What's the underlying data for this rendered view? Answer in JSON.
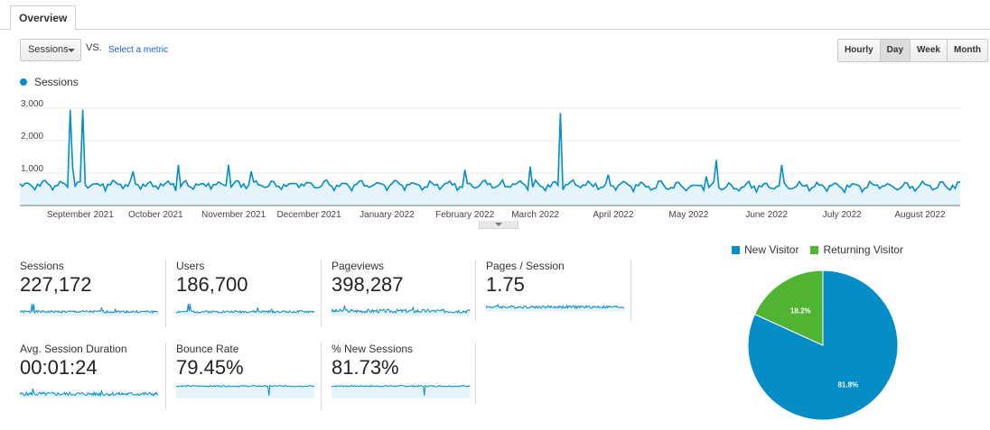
{
  "tabs": [
    {
      "label": "Overview",
      "active": true
    }
  ],
  "controls": {
    "metric_select": "Sessions",
    "vs_label": "VS.",
    "select_metric_link": "Select a metric",
    "granularity": [
      {
        "label": "Hourly",
        "active": false
      },
      {
        "label": "Day",
        "active": true
      },
      {
        "label": "Week",
        "active": false
      },
      {
        "label": "Month",
        "active": false
      }
    ]
  },
  "colors": {
    "primary": "#058dc7",
    "area_fill": "#e5f3fa",
    "new_visitor": "#058dc7",
    "returning_visitor": "#50b432",
    "gridline": "#e8e8e8"
  },
  "chart_data": [
    {
      "type": "area",
      "series": [
        {
          "name": "Sessions"
        }
      ],
      "yticks": [
        "3,000",
        "2,000",
        "1,000"
      ],
      "ytick_values": [
        3000,
        2000,
        1000
      ],
      "ylim": [
        0,
        3250
      ],
      "x_start": "2021-08-08",
      "x_end": "2022-08-17",
      "month_labels": [
        {
          "label": "September 2021",
          "date": "2021-09-01"
        },
        {
          "label": "October 2021",
          "date": "2021-10-01"
        },
        {
          "label": "November 2021",
          "date": "2021-11-01"
        },
        {
          "label": "December 2021",
          "date": "2021-12-01"
        },
        {
          "label": "January 2022",
          "date": "2022-01-01"
        },
        {
          "label": "February 2022",
          "date": "2022-02-01"
        },
        {
          "label": "March 2022",
          "date": "2022-03-01"
        },
        {
          "label": "April 2022",
          "date": "2022-04-01"
        },
        {
          "label": "May 2022",
          "date": "2022-05-01"
        },
        {
          "label": "June 2022",
          "date": "2022-06-01"
        },
        {
          "label": "July 2022",
          "date": "2022-07-01"
        },
        {
          "label": "August 2022",
          "date": "2022-08-01"
        }
      ],
      "baseline": 620,
      "spikes": [
        {
          "date": "2021-08-28",
          "value": 2950
        },
        {
          "date": "2021-09-02",
          "value": 2950
        },
        {
          "date": "2021-08-29",
          "value": 1150
        },
        {
          "date": "2021-09-22",
          "value": 1050
        },
        {
          "date": "2021-10-10",
          "value": 1250
        },
        {
          "date": "2021-10-30",
          "value": 1250
        },
        {
          "date": "2021-11-08",
          "value": 1050
        },
        {
          "date": "2022-02-01",
          "value": 1100
        },
        {
          "date": "2022-02-27",
          "value": 1200
        },
        {
          "date": "2022-03-11",
          "value": 2850
        },
        {
          "date": "2022-03-30",
          "value": 950
        },
        {
          "date": "2022-05-08",
          "value": 900
        },
        {
          "date": "2022-05-12",
          "value": 1400
        },
        {
          "date": "2022-06-07",
          "value": 1250
        }
      ]
    },
    {
      "type": "pie",
      "categories": [
        "New Visitor",
        "Returning Visitor"
      ],
      "values": [
        81.8,
        18.2
      ],
      "data_labels": [
        "81.8%",
        "18.2%"
      ],
      "legend": "top"
    }
  ],
  "scorecards": [
    {
      "label": "Sessions",
      "value": "227,172"
    },
    {
      "label": "Users",
      "value": "186,700"
    },
    {
      "label": "Pageviews",
      "value": "398,287"
    },
    {
      "label": "Pages / Session",
      "value": "1.75"
    },
    {
      "label": "Avg. Session Duration",
      "value": "00:01:24"
    },
    {
      "label": "Bounce Rate",
      "value": "79.45%"
    },
    {
      "label": "% New Sessions",
      "value": "81.73%"
    }
  ]
}
